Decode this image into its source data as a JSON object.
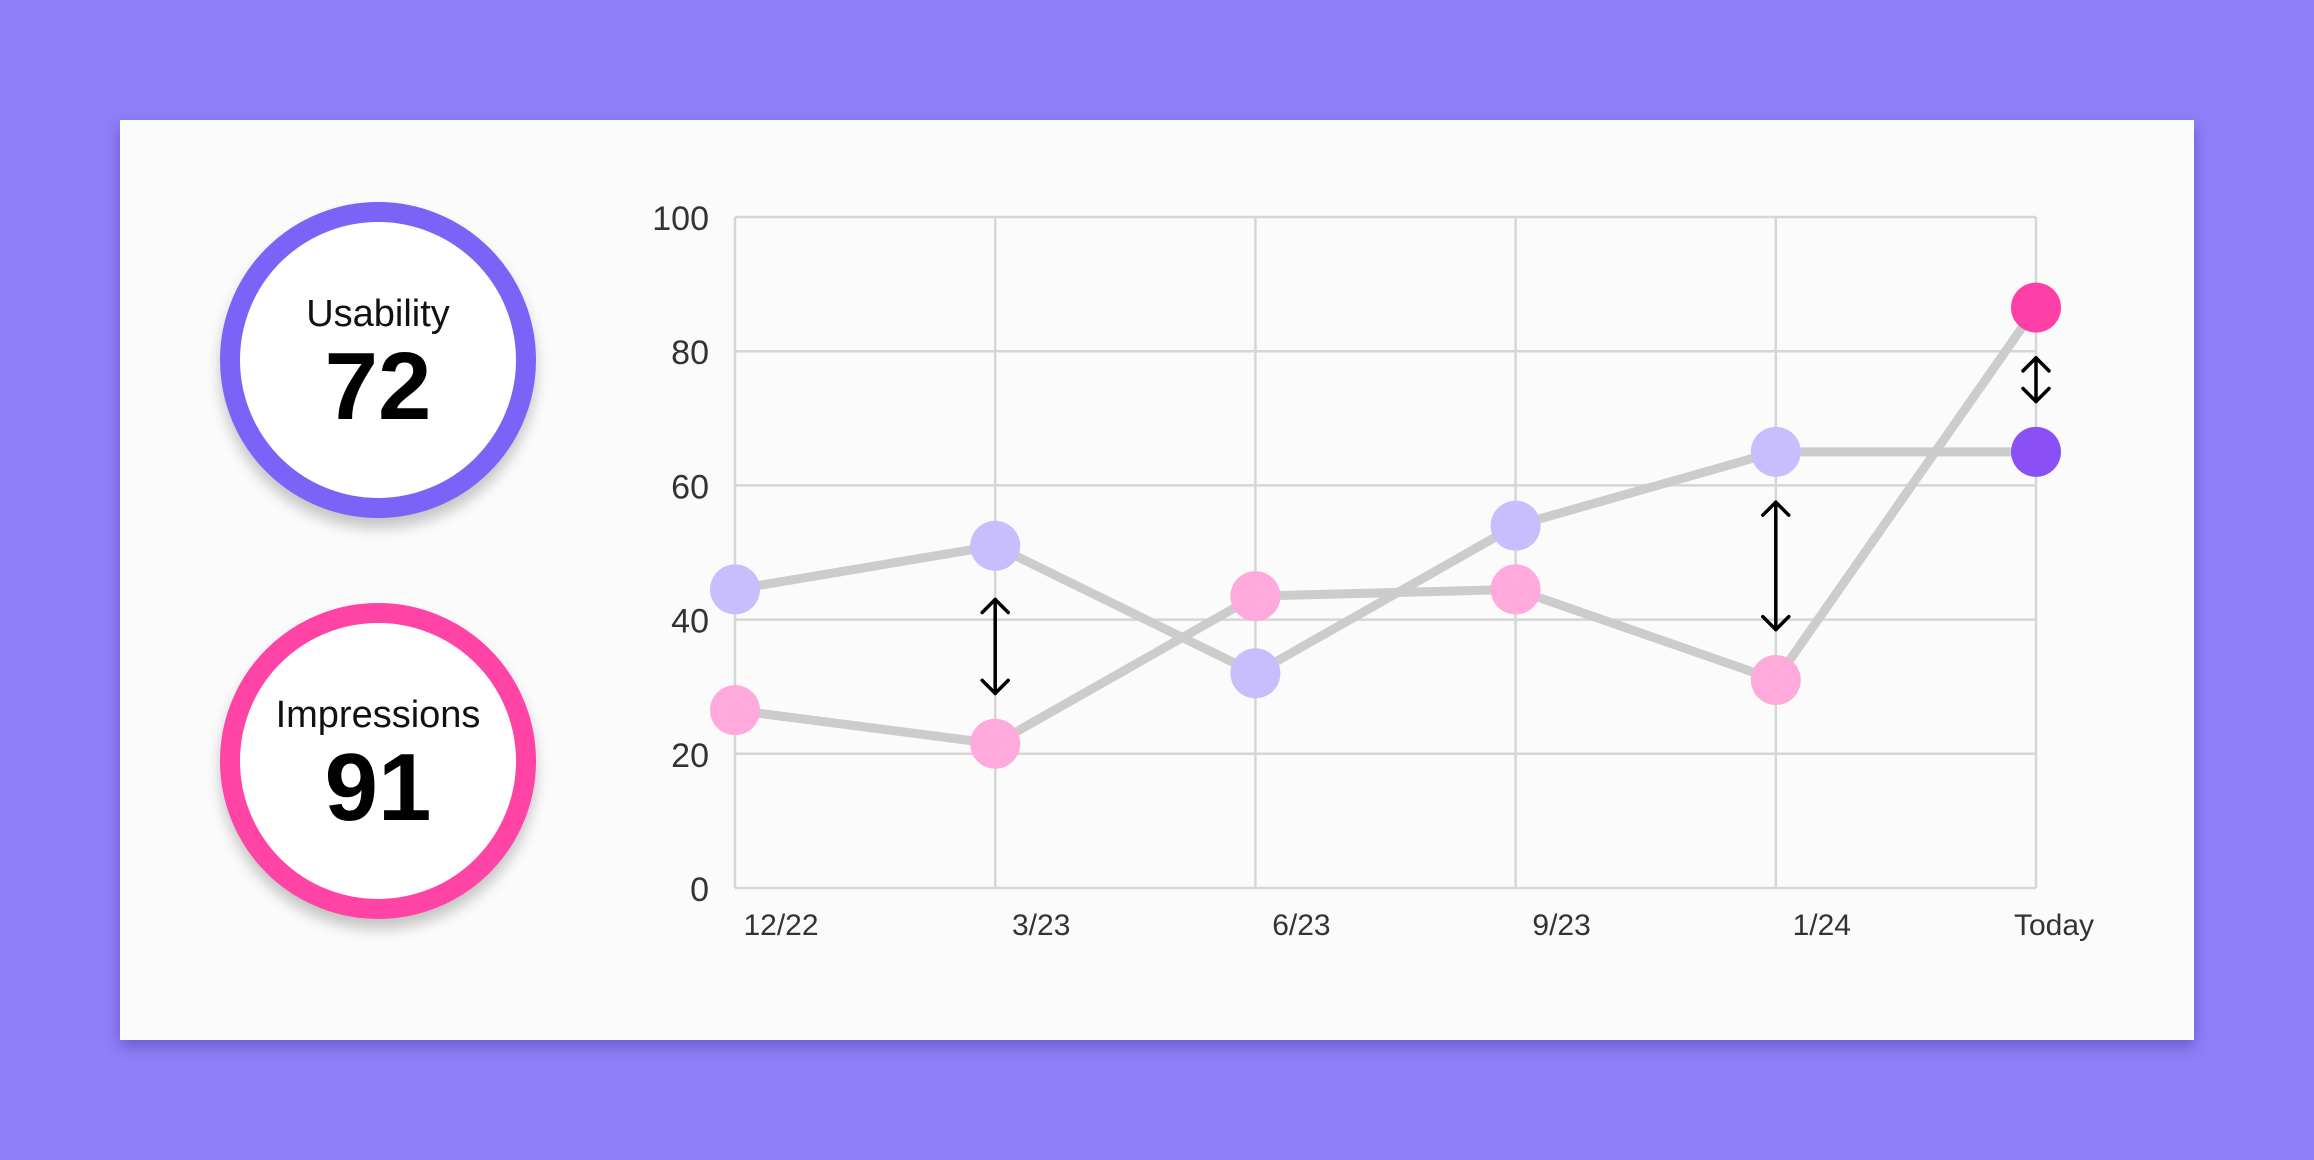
{
  "metrics": {
    "usability": {
      "label": "Usability",
      "value": "72",
      "color": "#7b63f7"
    },
    "impressions": {
      "label": "Impressions",
      "value": "91",
      "color": "#ff44a6"
    }
  },
  "chart_data": {
    "type": "line",
    "categories": [
      "12/22",
      "3/23",
      "6/23",
      "9/23",
      "1/24",
      "Today"
    ],
    "ylim": [
      0,
      100
    ],
    "yticks": [
      0,
      20,
      40,
      60,
      80,
      100
    ],
    "grid": true,
    "series": [
      {
        "values": [
          44.5,
          51,
          32,
          54,
          65,
          65
        ],
        "point_color": "#c8bdfd",
        "latest_point_color": "#8a4ff5"
      },
      {
        "values": [
          26.5,
          21.5,
          43.5,
          44.5,
          31,
          86.5
        ],
        "point_color": "#ffa9dc",
        "latest_point_color": "#ff3fa8"
      }
    ],
    "gap_arrows": [
      {
        "category": "3/23",
        "from": 43,
        "to": 29
      },
      {
        "category": "1/24",
        "from": 57.5,
        "to": 38.5
      },
      {
        "category": "Today",
        "from": 79,
        "to": 72.5
      }
    ],
    "line_color": "#cccccc",
    "grid_color": "#d6d6d6"
  }
}
